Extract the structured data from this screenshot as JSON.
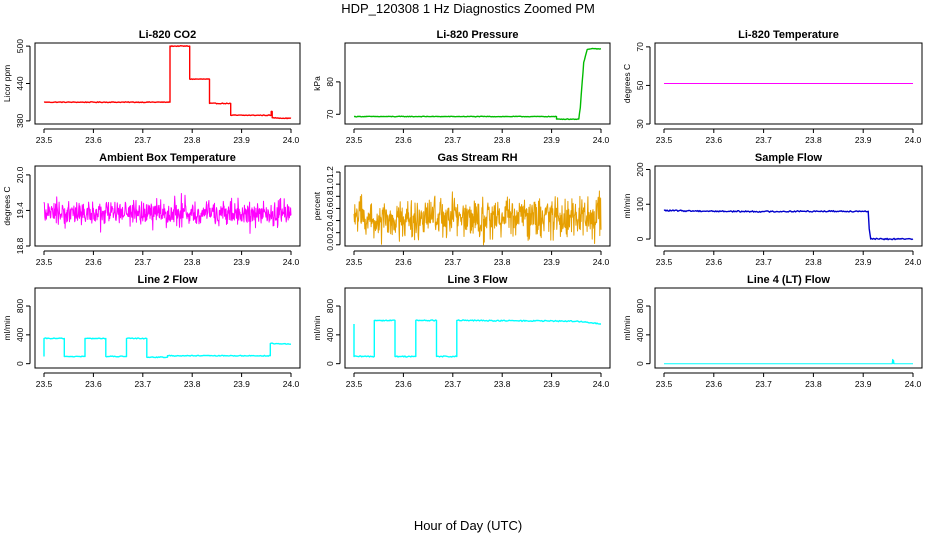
{
  "title": "HDP_120308  1 Hz Diagnostics Zoomed PM",
  "x_axis_label": "Hour of Day (UTC)",
  "chart_data": [
    {
      "type": "line",
      "title": "Li-820 CO2",
      "ylabel": "Licor ppm",
      "color": "#ff0000",
      "xlim": [
        23.5,
        24.0
      ],
      "ylim": [
        375,
        505
      ],
      "xticks": [
        "23.5",
        "23.6",
        "23.7",
        "23.8",
        "23.9",
        "24.0"
      ],
      "yticks": [
        {
          "v": 380,
          "label": "380"
        },
        {
          "v": 440,
          "label": "440"
        },
        {
          "v": 500,
          "label": "500"
        }
      ],
      "style": "steps",
      "noise": 0.6,
      "series": [
        {
          "name": "CO2",
          "x": [
            23.5,
            23.755,
            23.755,
            23.795,
            23.795,
            23.835,
            23.835,
            23.878,
            23.878,
            23.96,
            23.96,
            23.962,
            23.962,
            24.0
          ],
          "values": [
            410,
            410,
            500,
            500,
            447,
            447,
            408,
            408,
            389,
            389,
            395,
            395,
            385,
            384
          ]
        }
      ]
    },
    {
      "type": "line",
      "title": "Li-820 Pressure",
      "ylabel": "kPa",
      "color": "#00bb00",
      "xlim": [
        23.5,
        24.0
      ],
      "ylim": [
        67,
        92
      ],
      "xticks": [
        "23.5",
        "23.6",
        "23.7",
        "23.8",
        "23.9",
        "24.0"
      ],
      "yticks": [
        {
          "v": 70,
          "label": "70"
        },
        {
          "v": 80,
          "label": "80"
        }
      ],
      "style": "line",
      "noise": 0.1,
      "series": [
        {
          "name": "Pressure",
          "x": [
            23.5,
            23.91,
            23.91,
            23.955,
            23.958,
            23.962,
            23.965,
            23.972,
            23.98,
            24.0
          ],
          "values": [
            69.3,
            69.3,
            68.5,
            68.5,
            72,
            80,
            86,
            90,
            90.2,
            90.2
          ]
        }
      ]
    },
    {
      "type": "line",
      "title": "Li-820 Temperature",
      "ylabel": "degrees C",
      "color": "#ff00ff",
      "xlim": [
        23.5,
        24.0
      ],
      "ylim": [
        30,
        72
      ],
      "xticks": [
        "23.5",
        "23.6",
        "23.7",
        "23.8",
        "23.9",
        "24.0"
      ],
      "yticks": [
        {
          "v": 30,
          "label": "30"
        },
        {
          "v": 50,
          "label": "50"
        },
        {
          "v": 70,
          "label": "70"
        }
      ],
      "style": "line",
      "noise": 0,
      "series": [
        {
          "name": "Temperature",
          "x": [
            23.5,
            24.0
          ],
          "values": [
            51,
            51
          ]
        }
      ]
    },
    {
      "type": "line",
      "title": "Ambient Box Temperature",
      "ylabel": "degrees C",
      "color": "#ff00ff",
      "xlim": [
        23.5,
        24.0
      ],
      "ylim": [
        18.8,
        20.15
      ],
      "xticks": [
        "23.5",
        "23.6",
        "23.7",
        "23.8",
        "23.9",
        "24.0"
      ],
      "yticks": [
        {
          "v": 18.8,
          "label": "18.8"
        },
        {
          "v": 19.4,
          "label": "19.4"
        },
        {
          "v": 20.0,
          "label": "20.0"
        }
      ],
      "style": "noise",
      "base": 19.35,
      "amp": 0.28,
      "series": [
        {
          "name": "Ambient Box Temperature",
          "x": [
            23.5,
            24.0
          ],
          "values": [
            19.35,
            19.35
          ]
        }
      ]
    },
    {
      "type": "line",
      "title": "Gas Stream RH",
      "ylabel": "percent",
      "color": "#e69f00",
      "xlim": [
        23.5,
        24.0
      ],
      "ylim": [
        -0.02,
        1.3
      ],
      "xticks": [
        "23.5",
        "23.6",
        "23.7",
        "23.8",
        "23.9",
        "24.0"
      ],
      "yticks": [
        {
          "v": 0.0,
          "label": "0.0"
        },
        {
          "v": 0.2,
          "label": "0.2"
        },
        {
          "v": 0.4,
          "label": "0.4"
        },
        {
          "v": 0.6,
          "label": "0.6"
        },
        {
          "v": 0.8,
          "label": "0.8"
        },
        {
          "v": 1.0,
          "label": "1.0"
        },
        {
          "v": 1.2,
          "label": "1.2"
        }
      ],
      "style": "noise",
      "base": 0.45,
      "amp": 0.45,
      "series": [
        {
          "name": "RH",
          "x": [
            23.5,
            24.0
          ],
          "values": [
            0.45,
            0.45
          ]
        }
      ]
    },
    {
      "type": "line",
      "title": "Sample Flow",
      "ylabel": "ml/min",
      "color": "#0000cc",
      "xlim": [
        23.5,
        24.0
      ],
      "ylim": [
        -20,
        210
      ],
      "xticks": [
        "23.5",
        "23.6",
        "23.7",
        "23.8",
        "23.9",
        "24.0"
      ],
      "yticks": [
        {
          "v": 0,
          "label": "0"
        },
        {
          "v": 100,
          "label": "100"
        },
        {
          "v": 200,
          "label": "200"
        }
      ],
      "style": "line",
      "noise": 2,
      "series": [
        {
          "name": "Sample Flow",
          "x": [
            23.5,
            23.6,
            23.7,
            23.8,
            23.91,
            23.912,
            23.915,
            23.93,
            24.0
          ],
          "values": [
            82,
            80,
            79,
            80,
            80,
            30,
            0,
            0,
            0
          ]
        }
      ]
    },
    {
      "type": "line",
      "title": "Line 2 Flow",
      "ylabel": "ml/min",
      "color": "#00ffff",
      "xlim": [
        23.5,
        24.0
      ],
      "ylim": [
        -60,
        1050
      ],
      "xticks": [
        "23.5",
        "23.6",
        "23.7",
        "23.8",
        "23.9",
        "24.0"
      ],
      "yticks": [
        {
          "v": 0,
          "label": "0"
        },
        {
          "v": 400,
          "label": "400"
        },
        {
          "v": 800,
          "label": "800"
        }
      ],
      "style": "steps",
      "noise": 6,
      "series": [
        {
          "name": "Line 2",
          "x": [
            23.5,
            23.5,
            23.541,
            23.541,
            23.583,
            23.583,
            23.625,
            23.625,
            23.667,
            23.667,
            23.708,
            23.708,
            23.75,
            23.75,
            23.958,
            23.958,
            24.0
          ],
          "values": [
            100,
            350,
            350,
            100,
            100,
            350,
            350,
            100,
            100,
            350,
            350,
            90,
            90,
            110,
            110,
            280,
            270
          ]
        }
      ]
    },
    {
      "type": "line",
      "title": "Line 3 Flow",
      "ylabel": "ml/min",
      "color": "#00ffff",
      "xlim": [
        23.5,
        24.0
      ],
      "ylim": [
        -60,
        1050
      ],
      "xticks": [
        "23.5",
        "23.6",
        "23.7",
        "23.8",
        "23.9",
        "24.0"
      ],
      "yticks": [
        {
          "v": 0,
          "label": "0"
        },
        {
          "v": 400,
          "label": "400"
        },
        {
          "v": 800,
          "label": "800"
        }
      ],
      "style": "steps",
      "noise": 8,
      "series": [
        {
          "name": "Line 3",
          "x": [
            23.5,
            23.5,
            23.5,
            23.541,
            23.541,
            23.583,
            23.583,
            23.625,
            23.625,
            23.667,
            23.667,
            23.708,
            23.708,
            23.95,
            24.0
          ],
          "values": [
            550,
            100,
            100,
            100,
            600,
            600,
            100,
            100,
            600,
            600,
            100,
            100,
            600,
            590,
            550
          ]
        }
      ]
    },
    {
      "type": "line",
      "title": "Line 4 (LT) Flow",
      "ylabel": "ml/min",
      "color": "#00ffff",
      "xlim": [
        23.5,
        24.0
      ],
      "ylim": [
        -60,
        1050
      ],
      "xticks": [
        "23.5",
        "23.6",
        "23.7",
        "23.8",
        "23.9",
        "24.0"
      ],
      "yticks": [
        {
          "v": 0,
          "label": "0"
        },
        {
          "v": 400,
          "label": "400"
        },
        {
          "v": 800,
          "label": "800"
        }
      ],
      "style": "line",
      "noise": 0,
      "series": [
        {
          "name": "Line 4",
          "x": [
            23.5,
            23.958,
            23.959,
            23.96,
            23.961,
            23.962,
            24.0
          ],
          "values": [
            0,
            0,
            60,
            0,
            50,
            0,
            0
          ]
        }
      ]
    }
  ]
}
